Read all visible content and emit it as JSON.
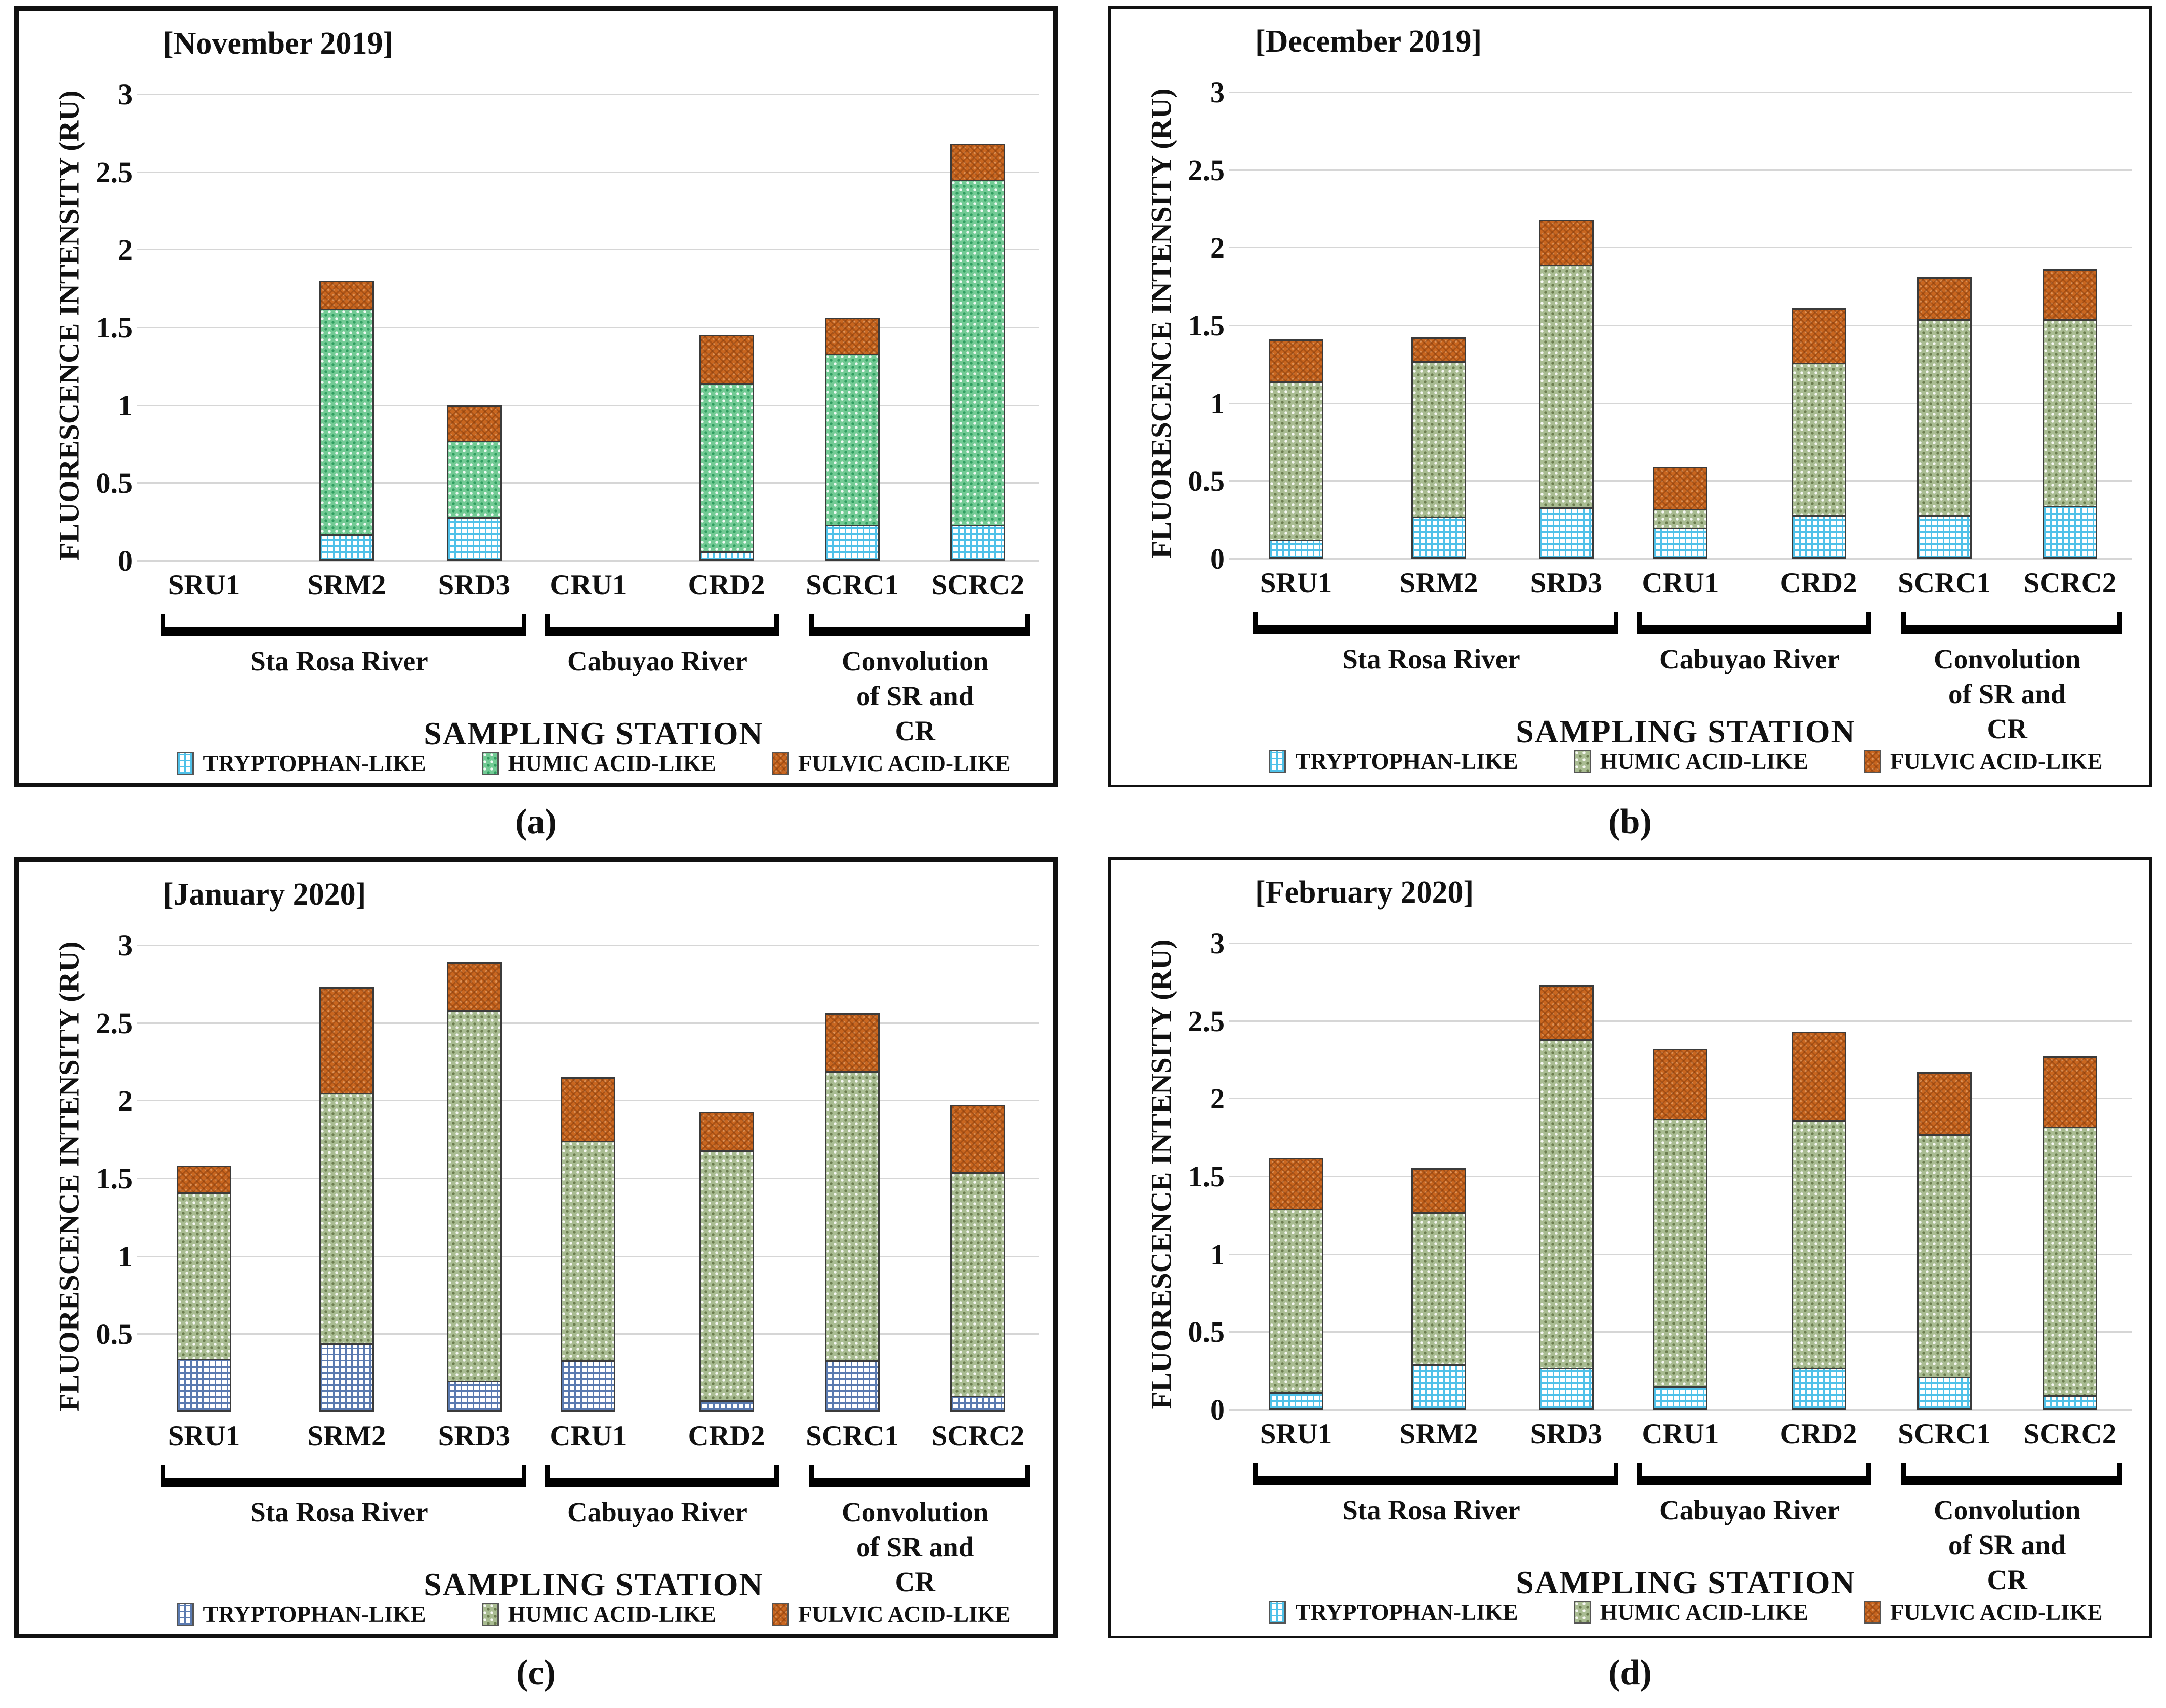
{
  "figure": {
    "captions": [
      "(a)",
      "(b)",
      "(c)",
      "(d)"
    ],
    "legend_labels": [
      "TRYPTOPHAN-LIKE",
      "HUMIC ACID-LIKE",
      "FULVIC ACID-LIKE"
    ],
    "colors": {
      "fulvic_base": "#c9661f",
      "gridline": "#d6d6d6",
      "text": "#111111",
      "tryptophan_grid_cyan": "#4fc1e9",
      "tryptophan_grid_navy": "#5a7ab0",
      "humic_mint": "#72ca94",
      "humic_mint_dark": "#2f9e60",
      "humic_sage": "#a9bc92",
      "humic_sage_dark": "#6b7d4f"
    }
  },
  "chart_data": [
    {
      "type": "bar",
      "stacked": true,
      "title": "[November 2019]",
      "ylabel": "FLUORESCENCE INTENSITY (RU)",
      "xlabel": "SAMPLING STATION",
      "ylim": [
        0,
        3
      ],
      "yticks": [
        3,
        2.5,
        2,
        1.5,
        1,
        0.5,
        0
      ],
      "ytick_labels": [
        "3",
        "2.5",
        "2",
        "1.5",
        "1",
        "0.5",
        "0"
      ],
      "show_zero_label": true,
      "grid": true,
      "legend_position": "bottom",
      "border": "thick",
      "tryptophan_grid_color": "#4fc1e9",
      "humic_base": "#72ca94",
      "humic_dark": "#2f9e60",
      "categories": [
        "SRU1",
        "SRM2",
        "SRD3",
        "CRU1",
        "CRD2",
        "SCRC1",
        "SCRC2"
      ],
      "groups": [
        {
          "label": "Sta Rosa River",
          "from": 0,
          "to": 2
        },
        {
          "label": "Cabuyao River",
          "from": 3,
          "to": 4
        },
        {
          "label": "Convolution\nof SR and CR",
          "from": 5,
          "to": 6
        }
      ],
      "series": [
        {
          "name": "TRYPTOPHAN-LIKE",
          "values": [
            0,
            0.17,
            0.28,
            0,
            0.06,
            0.23,
            0.23
          ]
        },
        {
          "name": "HUMIC ACID-LIKE",
          "values": [
            0,
            1.46,
            0.5,
            0,
            1.09,
            1.11,
            2.23
          ]
        },
        {
          "name": "FULVIC ACID-LIKE",
          "values": [
            0,
            0.19,
            0.24,
            0,
            0.32,
            0.24,
            0.24
          ]
        }
      ]
    },
    {
      "type": "bar",
      "stacked": true,
      "title": "[December 2019]",
      "ylabel": "FLUORESCENCE INTENSITY (RU)",
      "xlabel": "SAMPLING STATION",
      "ylim": [
        0,
        3
      ],
      "yticks": [
        3,
        2.5,
        2,
        1.5,
        1,
        0.5,
        0
      ],
      "ytick_labels": [
        "3",
        "2.5",
        "2",
        "1.5",
        "1",
        "0.5",
        "0"
      ],
      "show_zero_label": true,
      "grid": true,
      "legend_position": "bottom",
      "border": "thin",
      "tryptophan_grid_color": "#4fc1e9",
      "humic_base": "#a9bc92",
      "humic_dark": "#6b7d4f",
      "categories": [
        "SRU1",
        "SRM2",
        "SRD3",
        "CRU1",
        "CRD2",
        "SCRC1",
        "SCRC2"
      ],
      "groups": [
        {
          "label": "Sta Rosa River",
          "from": 0,
          "to": 2
        },
        {
          "label": "Cabuyao River",
          "from": 3,
          "to": 4
        },
        {
          "label": "Convolution\nof SR and CR",
          "from": 5,
          "to": 6
        }
      ],
      "series": [
        {
          "name": "TRYPTOPHAN-LIKE",
          "values": [
            0.12,
            0.27,
            0.33,
            0.2,
            0.28,
            0.28,
            0.34
          ]
        },
        {
          "name": "HUMIC ACID-LIKE",
          "values": [
            1.03,
            1.01,
            1.57,
            0.13,
            0.99,
            1.27,
            1.21
          ]
        },
        {
          "name": "FULVIC ACID-LIKE",
          "values": [
            0.28,
            0.16,
            0.3,
            0.28,
            0.36,
            0.28,
            0.33
          ]
        }
      ]
    },
    {
      "type": "bar",
      "stacked": true,
      "title": "[January 2020]",
      "ylabel": "FLUORESCENCE INTENSITY (RU)",
      "xlabel": "SAMPLING STATION",
      "ylim": [
        0,
        3
      ],
      "yticks": [
        3,
        2.5,
        2,
        1.5,
        1,
        0.5
      ],
      "ytick_labels": [
        "3",
        "2.5",
        "2",
        "1.5",
        "1",
        "0.5"
      ],
      "show_zero_label": false,
      "grid": true,
      "legend_position": "bottom",
      "border": "thick",
      "tryptophan_grid_color": "#5a7ab0",
      "humic_base": "#a9bc92",
      "humic_dark": "#6b7d4f",
      "categories": [
        "SRU1",
        "SRM2",
        "SRD3",
        "CRU1",
        "CRD2",
        "SCRC1",
        "SCRC2"
      ],
      "groups": [
        {
          "label": "Sta Rosa River",
          "from": 0,
          "to": 2
        },
        {
          "label": "Cabuyao River",
          "from": 3,
          "to": 4
        },
        {
          "label": "Convolution\nof SR and CR",
          "from": 5,
          "to": 6
        }
      ],
      "series": [
        {
          "name": "TRYPTOPHAN-LIKE",
          "values": [
            0.34,
            0.44,
            0.2,
            0.33,
            0.07,
            0.33,
            0.1
          ]
        },
        {
          "name": "HUMIC ACID-LIKE",
          "values": [
            1.08,
            1.62,
            2.39,
            1.42,
            1.62,
            1.87,
            1.45
          ]
        },
        {
          "name": "FULVIC ACID-LIKE",
          "values": [
            0.18,
            0.69,
            0.32,
            0.42,
            0.26,
            0.38,
            0.44
          ]
        }
      ]
    },
    {
      "type": "bar",
      "stacked": true,
      "title": "[February 2020]",
      "ylabel": "FLUORESCENCE INTENSITY (RU)",
      "xlabel": "SAMPLING STATION",
      "ylim": [
        0,
        3
      ],
      "yticks": [
        3,
        2.5,
        2,
        1.5,
        1,
        0.5,
        0
      ],
      "ytick_labels": [
        "3",
        "2.5",
        "2",
        "1.5",
        "1",
        "0.5",
        "0"
      ],
      "show_zero_label": true,
      "grid": true,
      "legend_position": "bottom",
      "border": "thin",
      "tryptophan_grid_color": "#4fc1e9",
      "humic_base": "#a9bc92",
      "humic_dark": "#6b7d4f",
      "categories": [
        "SRU1",
        "SRM2",
        "SRD3",
        "CRU1",
        "CRD2",
        "SCRC1",
        "SCRC2"
      ],
      "groups": [
        {
          "label": "Sta Rosa River",
          "from": 0,
          "to": 2
        },
        {
          "label": "Cabuyao River",
          "from": 3,
          "to": 4
        },
        {
          "label": "Convolution\nof SR and CR",
          "from": 5,
          "to": 6
        }
      ],
      "series": [
        {
          "name": "TRYPTOPHAN-LIKE",
          "values": [
            0.11,
            0.29,
            0.27,
            0.15,
            0.27,
            0.21,
            0.09
          ]
        },
        {
          "name": "HUMIC ACID-LIKE",
          "values": [
            1.19,
            0.99,
            2.12,
            1.73,
            1.6,
            1.57,
            1.74
          ]
        },
        {
          "name": "FULVIC ACID-LIKE",
          "values": [
            0.34,
            0.29,
            0.36,
            0.46,
            0.58,
            0.41,
            0.46
          ]
        }
      ]
    }
  ]
}
